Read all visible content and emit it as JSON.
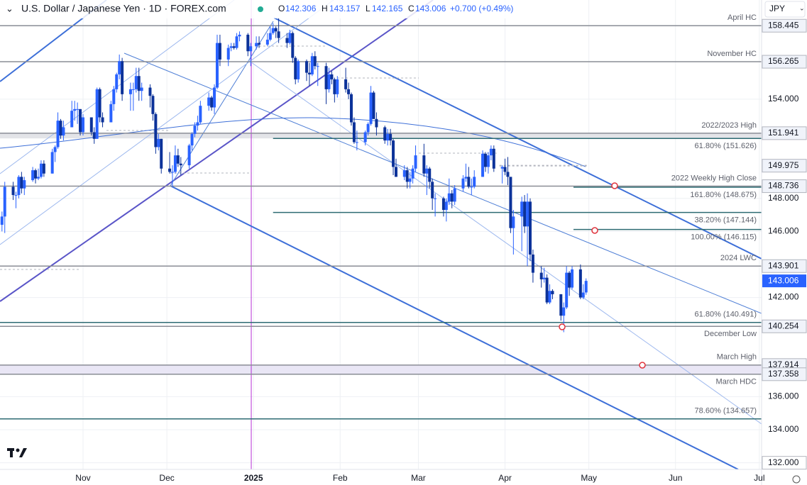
{
  "header": {
    "title": "U.S. Dollar / Japanese Yen · 1D · FOREX.com",
    "o_label": "O",
    "o": "142.306",
    "h_label": "H",
    "h": "143.157",
    "l_label": "L",
    "l": "142.165",
    "c_label": "C",
    "c": "143.006",
    "change": "+0.700 (+0.49%)",
    "currency": "JPY"
  },
  "chart_data": {
    "type": "candlestick",
    "up_color": "#2962ff",
    "down_color": "#0c3299",
    "xlim": [
      1.29,
      273.8
    ],
    "ylim": [
      131.6,
      160.0
    ],
    "xticks": [
      {
        "value": 31,
        "label": "Nov"
      },
      {
        "value": 61,
        "label": "Dec"
      },
      {
        "value": 92,
        "label": "2025"
      },
      {
        "value": 123,
        "label": "Feb"
      },
      {
        "value": 151,
        "label": "Mar"
      },
      {
        "value": 182,
        "label": "Apr"
      },
      {
        "value": 212,
        "label": "May"
      },
      {
        "value": 243,
        "label": "Jun"
      },
      {
        "value": 273,
        "label": "Jul"
      }
    ],
    "yticks": [
      {
        "value": 132,
        "label": "132.000"
      },
      {
        "value": 134,
        "label": "134.000"
      },
      {
        "value": 136,
        "label": "136.000"
      },
      {
        "value": 142,
        "label": "142.000"
      },
      {
        "value": 146,
        "label": "146.000"
      },
      {
        "value": 148,
        "label": "148.000"
      },
      {
        "value": 154,
        "label": "154.000"
      }
    ],
    "grid": true,
    "x": [
      2,
      3,
      6,
      7,
      8,
      9,
      10,
      13,
      14,
      15,
      16,
      17,
      20,
      21,
      22,
      23,
      24,
      27,
      28,
      29,
      30,
      31,
      34,
      35,
      36,
      37,
      38,
      41,
      42,
      43,
      44,
      45,
      48,
      49,
      50,
      51,
      52,
      55,
      56,
      57,
      58,
      59,
      62,
      63,
      64,
      65,
      66,
      69,
      70,
      71,
      72,
      73,
      76,
      77,
      78,
      79,
      80,
      83,
      84,
      85,
      86,
      87,
      90,
      91,
      93,
      94,
      97,
      98,
      99,
      100,
      101,
      104,
      105,
      106,
      107,
      108,
      111,
      112,
      113,
      114,
      115,
      118,
      119,
      120,
      121,
      122,
      125,
      126,
      127,
      128,
      129,
      132,
      133,
      134,
      135,
      136,
      139,
      140,
      141,
      142,
      143,
      146,
      147,
      148,
      149,
      150,
      153,
      154,
      155,
      156,
      157,
      160,
      161,
      162,
      163,
      164,
      167,
      168,
      169,
      170,
      171,
      174,
      175,
      176,
      177,
      178,
      181,
      182,
      183,
      184,
      185,
      188,
      189,
      190,
      191,
      192,
      195,
      196,
      197,
      198,
      199,
      202,
      203,
      204,
      205,
      206,
      209,
      210,
      211
    ],
    "ohlc": [
      [
        146.4,
        147.2,
        146.0,
        146.9
      ],
      [
        146.9,
        149.0,
        145.9,
        148.7
      ],
      [
        148.7,
        149.0,
        147.9,
        148.2
      ],
      [
        148.2,
        148.4,
        147.4,
        148.2
      ],
      [
        148.2,
        149.4,
        148.0,
        149.3
      ],
      [
        149.3,
        149.6,
        148.3,
        148.6
      ],
      [
        148.6,
        149.3,
        148.2,
        149.1
      ],
      [
        149.1,
        149.9,
        149.0,
        149.7
      ],
      [
        149.7,
        149.8,
        148.9,
        149.2
      ],
      [
        149.2,
        149.8,
        149.1,
        149.3
      ],
      [
        149.3,
        150.3,
        149.2,
        150.1
      ],
      [
        150.1,
        150.3,
        149.3,
        149.5
      ],
      [
        149.5,
        151.0,
        149.5,
        150.8
      ],
      [
        150.8,
        151.2,
        150.2,
        151.1
      ],
      [
        151.1,
        153.2,
        151.0,
        152.7
      ],
      [
        152.7,
        152.8,
        151.6,
        151.8
      ],
      [
        151.8,
        152.7,
        151.5,
        152.3
      ],
      [
        152.3,
        153.9,
        152.3,
        153.3
      ],
      [
        153.3,
        153.9,
        152.7,
        153.4
      ],
      [
        153.4,
        153.8,
        152.5,
        153.4
      ],
      [
        153.4,
        153.4,
        151.8,
        152.0
      ],
      [
        152.0,
        153.1,
        151.8,
        152.9
      ],
      [
        152.9,
        152.9,
        151.8,
        152.0
      ],
      [
        152.0,
        152.3,
        151.3,
        151.6
      ],
      [
        151.6,
        154.7,
        151.6,
        154.6
      ],
      [
        154.6,
        154.7,
        152.6,
        152.9
      ],
      [
        152.9,
        153.2,
        152.3,
        152.6
      ],
      [
        152.6,
        153.9,
        152.6,
        153.7
      ],
      [
        153.7,
        154.8,
        153.3,
        154.6
      ],
      [
        154.6,
        155.6,
        154.4,
        155.5
      ],
      [
        155.5,
        156.7,
        155.2,
        156.3
      ],
      [
        156.3,
        156.5,
        153.9,
        154.3
      ],
      [
        154.3,
        155.0,
        153.3,
        154.6
      ],
      [
        154.6,
        155.0,
        153.3,
        154.6
      ],
      [
        154.6,
        155.9,
        154.4,
        155.4
      ],
      [
        155.4,
        155.9,
        153.9,
        154.5
      ],
      [
        154.5,
        155.0,
        153.9,
        154.7
      ],
      [
        154.7,
        154.9,
        153.5,
        154.2
      ],
      [
        154.2,
        154.3,
        152.7,
        153.1
      ],
      [
        153.1,
        153.2,
        150.7,
        151.1
      ],
      [
        151.1,
        151.9,
        150.9,
        151.6
      ],
      [
        151.6,
        151.6,
        149.5,
        149.8
      ],
      [
        149.8,
        150.8,
        149.5,
        149.6
      ],
      [
        149.6,
        150.0,
        148.7,
        149.6
      ],
      [
        149.6,
        151.2,
        149.5,
        150.6
      ],
      [
        150.6,
        151.0,
        149.9,
        150.1
      ],
      [
        150.1,
        150.5,
        149.4,
        150.0
      ],
      [
        150.0,
        151.3,
        149.8,
        151.2
      ],
      [
        151.2,
        152.0,
        150.9,
        151.9
      ],
      [
        151.9,
        152.6,
        151.7,
        152.4
      ],
      [
        152.4,
        153.0,
        152.1,
        152.6
      ],
      [
        152.6,
        153.9,
        152.5,
        153.6
      ],
      [
        153.6,
        154.4,
        153.3,
        154.1
      ],
      [
        154.1,
        154.2,
        153.3,
        153.5
      ],
      [
        153.5,
        154.9,
        153.1,
        154.7
      ],
      [
        154.7,
        157.9,
        154.6,
        157.4
      ],
      [
        157.4,
        157.9,
        156.0,
        156.4
      ],
      [
        156.4,
        157.3,
        156.0,
        157.1
      ],
      [
        157.1,
        157.4,
        156.9,
        157.2
      ],
      [
        157.2,
        157.4,
        157.0,
        157.1
      ],
      [
        157.1,
        158.0,
        157.0,
        157.8
      ],
      [
        157.8,
        158.1,
        157.5,
        157.9
      ],
      [
        157.9,
        158.0,
        156.6,
        156.9
      ],
      [
        156.9,
        157.4,
        156.0,
        157.2
      ],
      [
        157.2,
        157.8,
        157.0,
        157.4
      ],
      [
        157.4,
        157.8,
        157.1,
        157.3
      ],
      [
        157.3,
        158.0,
        157.2,
        157.6
      ],
      [
        157.6,
        158.4,
        157.5,
        158.0
      ],
      [
        158.0,
        158.6,
        157.9,
        158.3
      ],
      [
        158.3,
        158.4,
        157.7,
        158.1
      ],
      [
        158.1,
        158.9,
        157.4,
        157.7
      ],
      [
        157.7,
        158.0,
        157.1,
        157.4
      ],
      [
        157.4,
        158.2,
        157.3,
        158.0
      ],
      [
        158.0,
        158.1,
        156.2,
        156.5
      ],
      [
        156.5,
        156.6,
        154.9,
        155.2
      ],
      [
        155.2,
        156.4,
        155.0,
        156.3
      ],
      [
        156.3,
        156.4,
        155.1,
        155.6
      ],
      [
        155.6,
        156.2,
        154.8,
        155.5
      ],
      [
        155.5,
        156.8,
        155.4,
        156.6
      ],
      [
        156.6,
        156.9,
        155.8,
        156.0
      ],
      [
        156.0,
        156.2,
        154.8,
        156.0
      ],
      [
        156.0,
        156.2,
        153.7,
        154.6
      ],
      [
        154.6,
        155.9,
        154.4,
        155.5
      ],
      [
        155.5,
        155.7,
        154.9,
        155.2
      ],
      [
        155.2,
        155.3,
        153.8,
        154.3
      ],
      [
        154.3,
        155.4,
        154.1,
        155.2
      ],
      [
        155.2,
        155.9,
        154.4,
        154.6
      ],
      [
        154.6,
        155.0,
        154.0,
        154.3
      ],
      [
        154.3,
        154.4,
        152.4,
        152.6
      ],
      [
        152.6,
        152.9,
        151.3,
        151.4
      ],
      [
        151.4,
        152.1,
        150.9,
        151.4
      ],
      [
        151.4,
        152.1,
        151.2,
        152.0
      ],
      [
        152.0,
        152.6,
        151.8,
        152.5
      ],
      [
        152.5,
        154.8,
        152.4,
        154.4
      ],
      [
        154.4,
        154.5,
        152.8,
        152.8
      ],
      [
        152.8,
        153.2,
        151.8,
        152.3
      ],
      [
        152.3,
        152.4,
        151.3,
        151.5
      ],
      [
        151.5,
        152.2,
        151.2,
        151.9
      ],
      [
        151.9,
        152.2,
        151.2,
        151.5
      ],
      [
        151.5,
        151.6,
        149.4,
        149.9
      ],
      [
        149.9,
        150.4,
        149.3,
        149.3
      ],
      [
        149.3,
        150.0,
        149.1,
        149.7
      ],
      [
        149.7,
        149.9,
        148.6,
        149.0
      ],
      [
        149.0,
        149.6,
        148.6,
        149.2
      ],
      [
        149.2,
        150.0,
        148.9,
        149.8
      ],
      [
        149.8,
        151.2,
        149.6,
        150.6
      ],
      [
        150.6,
        151.3,
        149.3,
        149.5
      ],
      [
        149.5,
        150.0,
        148.2,
        149.8
      ],
      [
        149.8,
        149.9,
        148.6,
        149.0
      ],
      [
        149.0,
        149.2,
        147.3,
        148.0
      ],
      [
        148.0,
        148.3,
        146.9,
        148.0
      ],
      [
        148.0,
        148.1,
        146.9,
        147.3
      ],
      [
        147.3,
        148.0,
        146.6,
        147.8
      ],
      [
        147.8,
        149.2,
        147.6,
        148.3
      ],
      [
        148.3,
        148.5,
        147.4,
        147.8
      ],
      [
        147.8,
        148.8,
        147.6,
        148.6
      ],
      [
        148.6,
        149.4,
        148.4,
        149.2
      ],
      [
        149.2,
        150.1,
        149.0,
        149.3
      ],
      [
        149.3,
        149.9,
        148.6,
        148.7
      ],
      [
        148.7,
        149.2,
        148.2,
        148.7
      ],
      [
        148.7,
        149.7,
        148.6,
        149.3
      ],
      [
        149.3,
        150.9,
        149.3,
        150.7
      ],
      [
        150.7,
        150.8,
        149.6,
        149.9
      ],
      [
        149.9,
        150.8,
        149.5,
        150.6
      ],
      [
        150.6,
        151.2,
        150.3,
        151.0
      ],
      [
        151.0,
        151.2,
        149.6,
        149.8
      ],
      [
        149.8,
        150.0,
        148.9,
        149.9
      ],
      [
        149.9,
        150.4,
        149.4,
        149.6
      ],
      [
        149.6,
        150.5,
        148.8,
        149.3
      ],
      [
        149.3,
        149.3,
        145.9,
        146.2
      ],
      [
        146.2,
        147.3,
        144.6,
        146.9
      ],
      [
        146.9,
        148.1,
        144.8,
        147.8
      ],
      [
        147.8,
        148.2,
        145.9,
        146.3
      ],
      [
        146.3,
        148.3,
        143.9,
        147.8
      ],
      [
        147.8,
        148.0,
        144.2,
        144.6
      ],
      [
        144.6,
        144.9,
        142.9,
        143.5
      ],
      [
        143.5,
        143.9,
        142.6,
        143.1
      ],
      [
        143.1,
        143.8,
        142.9,
        143.2
      ],
      [
        143.2,
        143.4,
        141.6,
        141.7
      ],
      [
        141.7,
        142.8,
        141.6,
        142.4
      ],
      [
        142.4,
        142.5,
        141.9,
        142.2
      ],
      [
        142.2,
        142.2,
        140.6,
        140.9
      ],
      [
        140.9,
        141.7,
        139.9,
        141.4
      ],
      [
        141.4,
        143.9,
        141.3,
        143.5
      ],
      [
        143.5,
        143.6,
        142.1,
        142.6
      ],
      [
        142.6,
        143.9,
        142.5,
        143.7
      ],
      [
        143.7,
        144.0,
        141.9,
        142.0
      ],
      [
        142.0,
        142.8,
        141.9,
        142.3
      ],
      [
        142.306,
        143.157,
        142.165,
        143.006
      ]
    ],
    "levels": [
      {
        "value": 158.445,
        "label": "April HC",
        "label_side": "above",
        "color": "#8a8d96",
        "axis_box": true
      },
      {
        "value": 156.265,
        "label": "November HC",
        "label_side": "above",
        "color": "#8a8d96",
        "axis_box": true
      },
      {
        "value": 151.941,
        "label": "2022/2023 High",
        "label_side": "above",
        "color": "#8a8d96",
        "axis_box": true
      },
      {
        "value": 151.626,
        "label": "61.80% (151.626)",
        "label_side": "below",
        "color": "#2e6b73",
        "from": 99
      },
      {
        "value": 149.975,
        "color": "#b2b5be",
        "from": 180,
        "to": 212,
        "dashed": true,
        "axis_box": true
      },
      {
        "value": 148.736,
        "label": "2022 Weekly High Close",
        "label_side": "above",
        "color": "#8a8d96",
        "axis_box": true
      },
      {
        "value": 148.675,
        "label": "161.80% (148.675)",
        "label_side": "below",
        "color": "#2e6b73",
        "from": 206.5
      },
      {
        "value": 147.144,
        "label": "38.20% (147.144)",
        "label_side": "below",
        "color": "#2e6b73",
        "from": 99
      },
      {
        "value": 146.115,
        "label": "100.00% (146.115)",
        "label_side": "below",
        "color": "#2e6b73",
        "from": 206.5
      },
      {
        "value": 143.901,
        "label": "2024 LWC",
        "label_side": "above",
        "color": "#8a8d96",
        "axis_box": true
      },
      {
        "value": 140.491,
        "label": "61.80% (140.491)",
        "label_side": "above",
        "color": "#2e6b73"
      },
      {
        "value": 140.254,
        "label": "December Low",
        "label_side": "below",
        "color": "#8a8d96",
        "axis_box": true
      },
      {
        "value": 137.914,
        "label": "March High",
        "label_side": "above",
        "color": "#8a8d96",
        "axis_box": true
      },
      {
        "value": 137.358,
        "label": "March HDC",
        "label_side": "below",
        "color": "#8a8d96",
        "axis_box": true
      },
      {
        "value": 134.657,
        "label": "78.60% (134.657)",
        "label_side": "above",
        "color": "#2e6b73"
      }
    ],
    "bands": [
      {
        "levels": [
          2,
          3
        ],
        "color": "#e3e4e8"
      },
      {
        "levels": [
          12,
          13
        ],
        "color": "#e9e6f5"
      }
    ],
    "current_price": {
      "value": 143.006,
      "color": "#2962ff"
    }
  }
}
